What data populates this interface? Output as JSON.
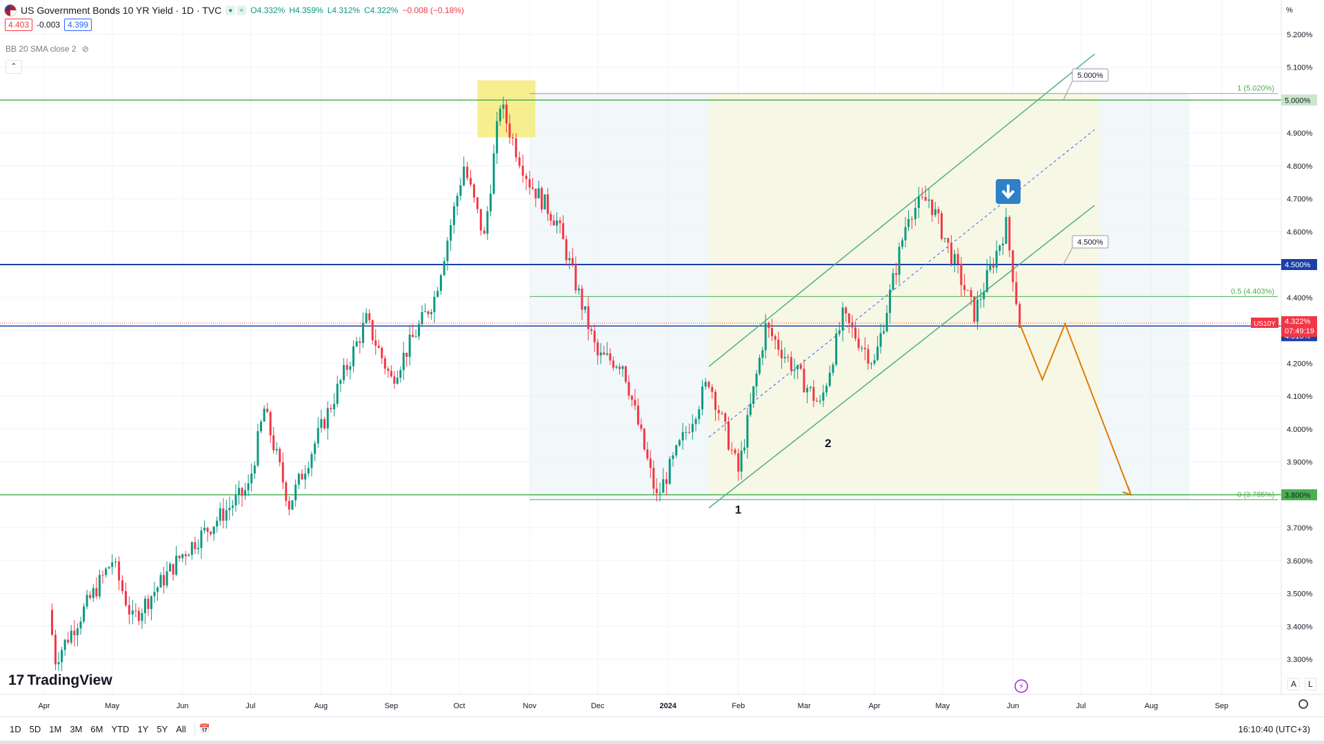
{
  "header": {
    "title": "US Government Bonds 10 YR Yield · 1D · TVC",
    "open": "O4.332%",
    "high": "H4.359%",
    "low": "L4.312%",
    "close": "C4.322%",
    "change": "−0.008 (−0.18%)"
  },
  "quote": {
    "bid": "4.403",
    "spread": "-0.003",
    "ask": "4.399"
  },
  "indicator": {
    "label": "BB 20 SMA close 2"
  },
  "logo": {
    "text": "TradingView"
  },
  "axis_unit": "%",
  "chart_data": {
    "type": "candlestick",
    "title": "US Government Bonds 10 YR Yield · 1D · TVC",
    "ylim": [
      3.2,
      5.25
    ],
    "y_ticks": [
      "5.200%",
      "5.100%",
      "5.000%",
      "4.900%",
      "4.800%",
      "4.700%",
      "4.600%",
      "4.500%",
      "4.400%",
      "4.300%",
      "4.200%",
      "4.100%",
      "4.000%",
      "3.900%",
      "3.800%",
      "3.700%",
      "3.600%",
      "3.500%",
      "3.400%",
      "3.300%"
    ],
    "x_ticks": [
      "Apr",
      "May",
      "Jun",
      "Jul",
      "Aug",
      "Sep",
      "Oct",
      "Nov",
      "Dec",
      "2024",
      "Feb",
      "Mar",
      "Apr",
      "May",
      "Jun",
      "Jul",
      "Aug",
      "Sep"
    ],
    "grid": true,
    "colors": {
      "up": "#089981",
      "down": "#f23645",
      "channel": "#4caf88",
      "level_blue": "#1a3fa8",
      "level_green": "#4caf50",
      "forecast": "#e07b00"
    },
    "anchor_points": [
      {
        "date": "2023-04-03",
        "value": 3.45
      },
      {
        "date": "2023-04-06",
        "value": 3.3
      },
      {
        "date": "2023-05-01",
        "value": 3.6
      },
      {
        "date": "2023-05-10",
        "value": 3.42
      },
      {
        "date": "2023-06-01",
        "value": 3.62
      },
      {
        "date": "2023-06-30",
        "value": 3.82
      },
      {
        "date": "2023-07-07",
        "value": 4.06
      },
      {
        "date": "2023-07-18",
        "value": 3.77
      },
      {
        "date": "2023-08-04",
        "value": 4.05
      },
      {
        "date": "2023-08-21",
        "value": 4.33
      },
      {
        "date": "2023-09-01",
        "value": 4.15
      },
      {
        "date": "2023-09-20",
        "value": 4.4
      },
      {
        "date": "2023-10-03",
        "value": 4.8
      },
      {
        "date": "2023-10-12",
        "value": 4.58
      },
      {
        "date": "2023-10-19",
        "value": 4.99
      },
      {
        "date": "2023-10-26",
        "value": 4.85
      },
      {
        "date": "2023-11-01",
        "value": 4.75
      },
      {
        "date": "2023-11-13",
        "value": 4.63
      },
      {
        "date": "2023-12-01",
        "value": 4.22
      },
      {
        "date": "2023-12-12",
        "value": 4.2
      },
      {
        "date": "2023-12-27",
        "value": 3.79
      },
      {
        "date": "2024-01-19",
        "value": 4.15
      },
      {
        "date": "2024-02-01",
        "value": 3.87
      },
      {
        "date": "2024-02-13",
        "value": 4.31
      },
      {
        "date": "2024-03-08",
        "value": 4.07
      },
      {
        "date": "2024-03-18",
        "value": 4.34
      },
      {
        "date": "2024-04-01",
        "value": 4.2
      },
      {
        "date": "2024-04-16",
        "value": 4.66
      },
      {
        "date": "2024-04-25",
        "value": 4.7
      },
      {
        "date": "2024-05-02",
        "value": 4.58
      },
      {
        "date": "2024-05-15",
        "value": 4.35
      },
      {
        "date": "2024-05-29",
        "value": 4.62
      },
      {
        "date": "2024-06-04",
        "value": 4.32
      }
    ],
    "levels": [
      {
        "label": "5.000%",
        "value": 5.0
      },
      {
        "label": "4.500%",
        "value": 4.5
      },
      {
        "label": "4.313%",
        "value": 4.313
      },
      {
        "label": "3.800%",
        "value": 3.8
      }
    ],
    "fib": [
      {
        "label": "1 (5.020%)",
        "value": 5.02
      },
      {
        "label": "0.5 (4.403%)",
        "value": 4.403
      },
      {
        "label": "0 (3.785%)",
        "value": 3.785
      }
    ],
    "callouts": [
      "5.000%",
      "4.500%"
    ],
    "last_price": {
      "symbol": "US10Y",
      "value": "4.322%",
      "countdown": "07:49:19"
    },
    "wave_labels": [
      "1",
      "2"
    ],
    "forecast_path": [
      {
        "date": "2024-06-04",
        "value": 4.32
      },
      {
        "date": "2024-06-14",
        "value": 4.15
      },
      {
        "date": "2024-06-24",
        "value": 4.32
      },
      {
        "date": "2024-07-23",
        "value": 3.8
      }
    ]
  },
  "timeframes": [
    "1D",
    "5D",
    "1M",
    "3M",
    "6M",
    "YTD",
    "1Y",
    "5Y",
    "All"
  ],
  "clock": "16:10:40 (UTC+3)",
  "scale_buttons": [
    "A",
    "L"
  ]
}
